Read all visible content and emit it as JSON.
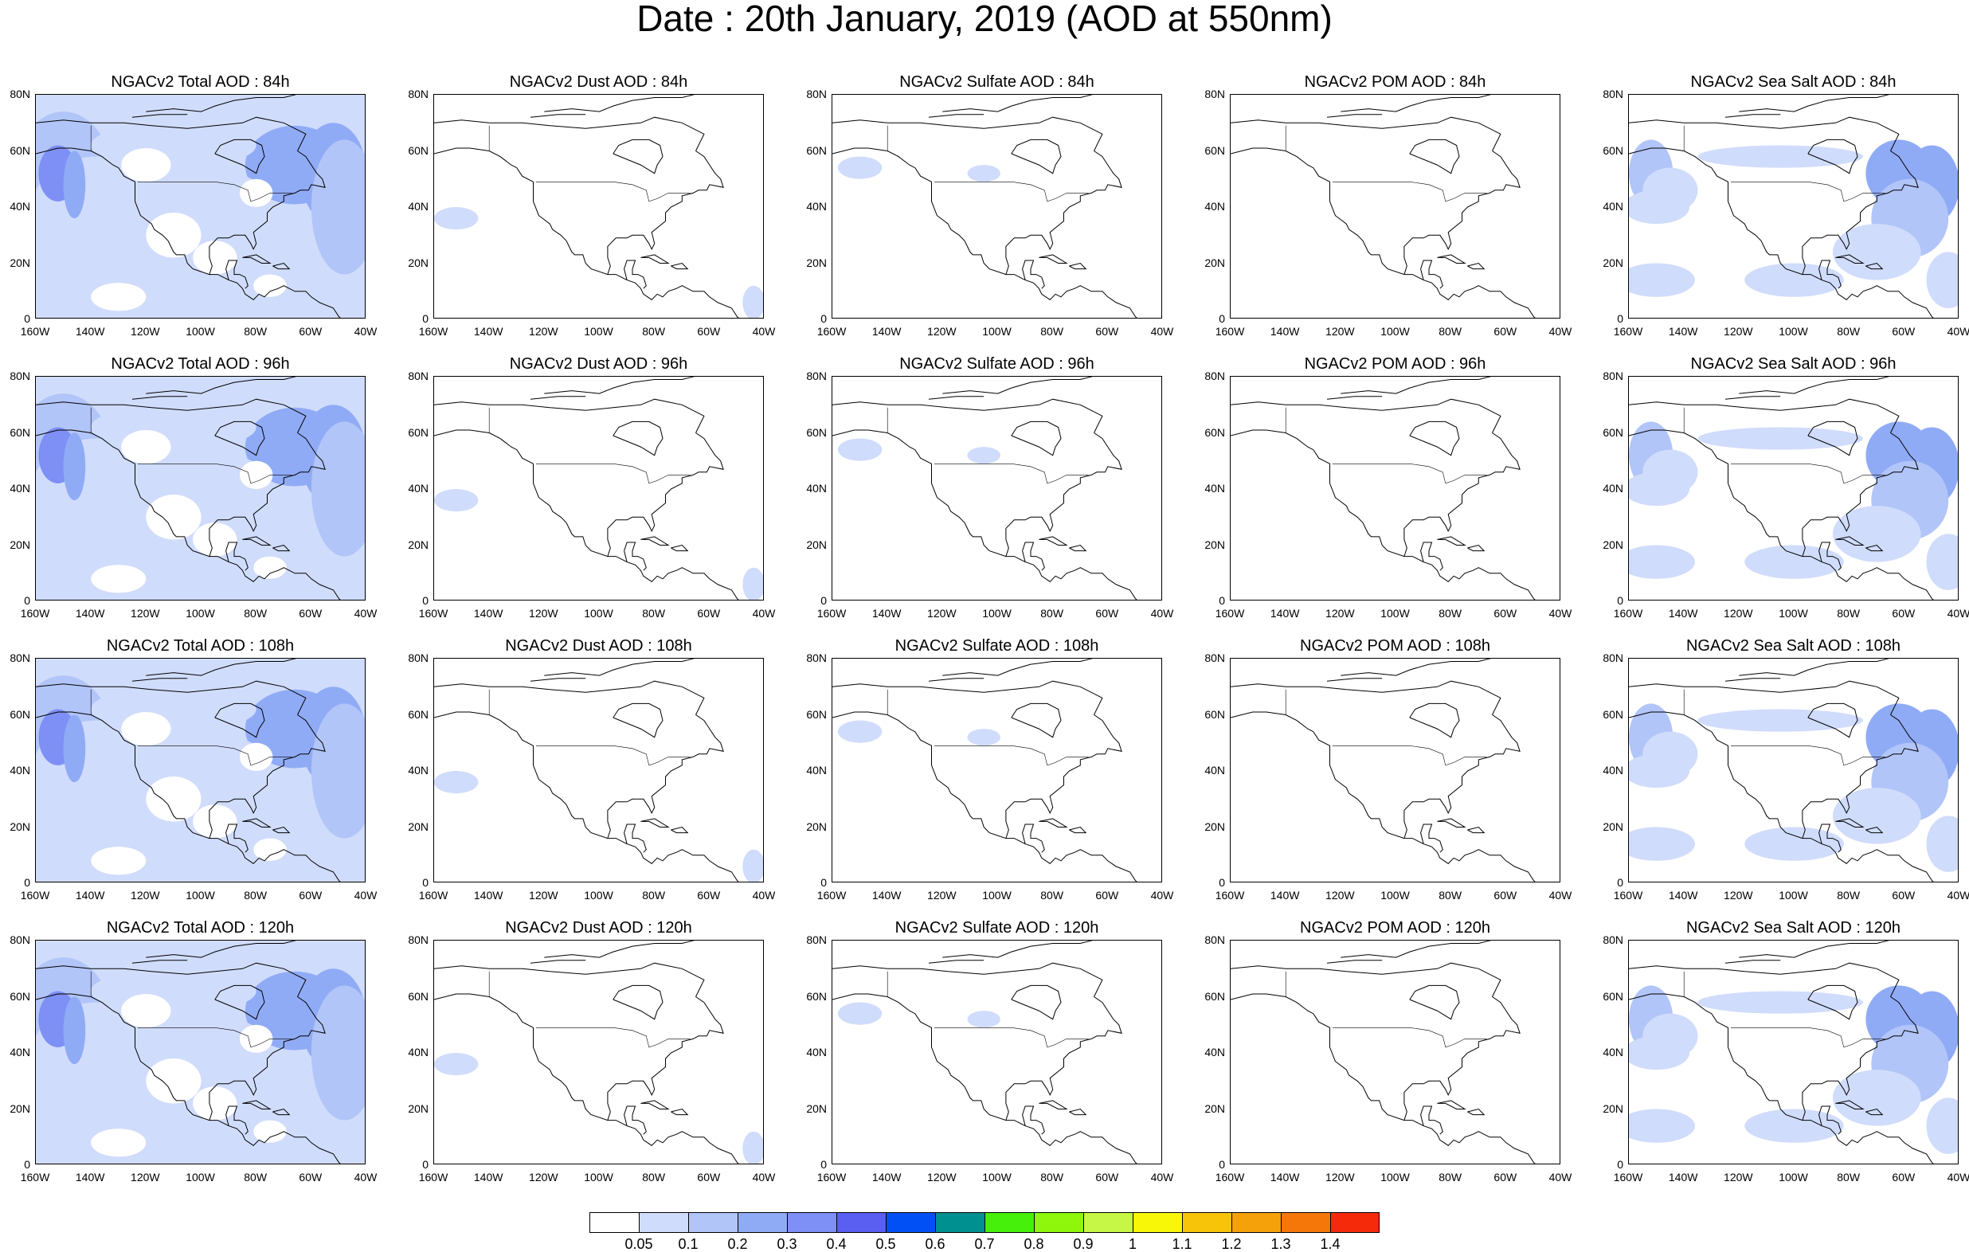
{
  "title": "Date : 20th January, 2019 (AOD at 550nm)",
  "axes": {
    "lat_ticks": [
      "80N",
      "60N",
      "40N",
      "20N",
      "0"
    ],
    "lon_ticks": [
      "160W",
      "140W",
      "120W",
      "100W",
      "80W",
      "60W",
      "40W"
    ]
  },
  "rows": [
    {
      "hour": "84h",
      "titles": [
        "NGACv2 Total AOD : 84h",
        "NGACv2 Dust AOD : 84h",
        "NGACv2 Sulfate AOD : 84h",
        "NGACv2 POM AOD : 84h",
        "NGACv2 Sea Salt AOD : 84h"
      ]
    },
    {
      "hour": "96h",
      "titles": [
        "NGACv2 Total AOD : 96h",
        "NGACv2 Dust AOD : 96h",
        "NGACv2 Sulfate AOD : 96h",
        "NGACv2 POM AOD : 96h",
        "NGACv2 Sea Salt AOD : 96h"
      ]
    },
    {
      "hour": "108h",
      "titles": [
        "NGACv2 Total AOD : 108h",
        "NGACv2 Dust AOD : 108h",
        "NGACv2 Sulfate AOD : 108h",
        "NGACv2 POM AOD : 108h",
        "NGACv2 Sea Salt AOD : 108h"
      ]
    },
    {
      "hour": "120h",
      "titles": [
        "NGACv2 Total AOD : 120h",
        "NGACv2 Dust AOD : 120h",
        "NGACv2 Sulfate AOD : 120h",
        "NGACv2 POM AOD : 120h",
        "NGACv2 Sea Salt  AOD : 120h"
      ]
    }
  ],
  "map_extent": {
    "lon": [
      -160,
      -40
    ],
    "lat": [
      0,
      80
    ]
  },
  "field_levels": {
    "Total": "widespread 0.05-0.2, max 0.3-0.4 over N Atlantic and NE Pacific",
    "Dust": "mostly below 0.05, patches 0.05-0.1",
    "Sulfate": "mostly below 0.05, patches 0.05-0.1",
    "POM": "below 0.05",
    "Sea Salt": "widespread 0.05-0.2, max 0.3-0.4 over N Atlantic and NE Pacific"
  },
  "colorbar": {
    "colors": [
      "#ffffff",
      "#d0dcfb",
      "#b2c5f8",
      "#90abf6",
      "#7e8ff5",
      "#5a5ef1",
      "#0050f5",
      "#00908f",
      "#47f00a",
      "#8ff70c",
      "#c6f746",
      "#f8f708",
      "#f8c40a",
      "#f5a10a",
      "#f5770a",
      "#f52a0a"
    ],
    "labels": [
      "0.05",
      "0.1",
      "0.2",
      "0.3",
      "0.4",
      "0.5",
      "0.6",
      "0.7",
      "0.8",
      "0.9",
      "1",
      "1.1",
      "1.2",
      "1.3",
      "1.4"
    ]
  }
}
